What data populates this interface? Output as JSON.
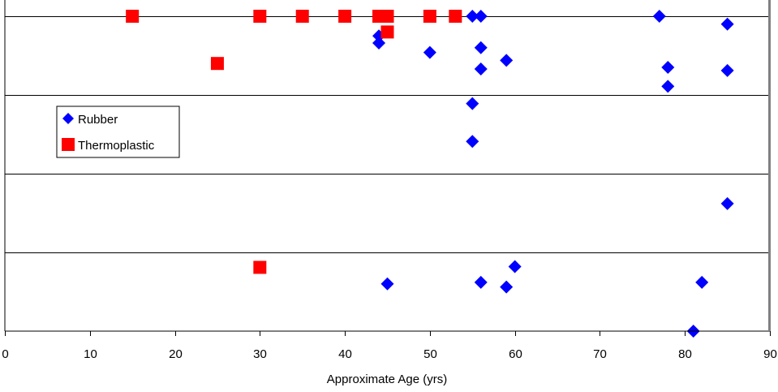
{
  "chart_data": {
    "type": "scatter",
    "title": "",
    "xlabel": "Approximate Age (yrs)",
    "ylabel": "",
    "xlim": [
      0,
      90
    ],
    "ylim": [
      0,
      4
    ],
    "x_ticks": [
      0,
      10,
      20,
      30,
      40,
      50,
      60,
      70,
      80,
      90
    ],
    "y_gridlines": [
      1,
      2,
      3,
      4
    ],
    "grid": true,
    "legend_position": "upper-left",
    "series": [
      {
        "name": "Rubber",
        "marker": "diamond",
        "color": "#0000ff",
        "points": [
          {
            "x": 44,
            "y": 3.75
          },
          {
            "x": 44,
            "y": 3.66
          },
          {
            "x": 50,
            "y": 3.54
          },
          {
            "x": 55,
            "y": 4.0
          },
          {
            "x": 56,
            "y": 4.0
          },
          {
            "x": 56,
            "y": 3.6
          },
          {
            "x": 56,
            "y": 3.33
          },
          {
            "x": 59,
            "y": 3.44
          },
          {
            "x": 77,
            "y": 4.0
          },
          {
            "x": 85,
            "y": 3.9
          },
          {
            "x": 78,
            "y": 3.35
          },
          {
            "x": 78,
            "y": 3.11
          },
          {
            "x": 85,
            "y": 3.31
          },
          {
            "x": 55,
            "y": 2.89
          },
          {
            "x": 55,
            "y": 2.41
          },
          {
            "x": 85,
            "y": 1.62
          },
          {
            "x": 45,
            "y": 0.6
          },
          {
            "x": 56,
            "y": 0.62
          },
          {
            "x": 59,
            "y": 0.56
          },
          {
            "x": 60,
            "y": 0.82
          },
          {
            "x": 82,
            "y": 0.62
          },
          {
            "x": 81,
            "y": 0.0
          }
        ]
      },
      {
        "name": "Thermoplastic",
        "marker": "square",
        "color": "#ff0000",
        "points": [
          {
            "x": 15,
            "y": 4.0
          },
          {
            "x": 30,
            "y": 4.0
          },
          {
            "x": 35,
            "y": 4.0
          },
          {
            "x": 40,
            "y": 4.0
          },
          {
            "x": 44,
            "y": 4.0
          },
          {
            "x": 45,
            "y": 4.0
          },
          {
            "x": 45,
            "y": 3.8
          },
          {
            "x": 50,
            "y": 4.0
          },
          {
            "x": 53,
            "y": 4.0
          },
          {
            "x": 25,
            "y": 3.4
          },
          {
            "x": 30,
            "y": 0.81
          }
        ]
      }
    ]
  }
}
